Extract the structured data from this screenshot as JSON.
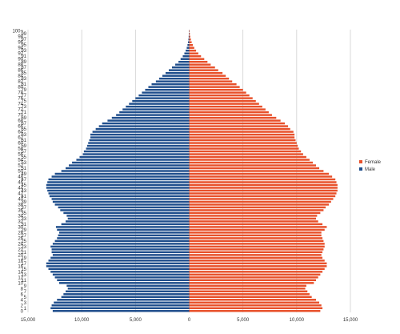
{
  "chart_data": {
    "type": "bar",
    "orientation": "horizontal",
    "layout": "population-pyramid",
    "categories": [
      "0",
      "1",
      "2",
      "3",
      "4",
      "5",
      "6",
      "7",
      "8",
      "9",
      "10",
      "11",
      "12",
      "13",
      "14",
      "15",
      "16",
      "17",
      "18",
      "19",
      "20",
      "21",
      "22",
      "23",
      "24",
      "25",
      "26",
      "27",
      "28",
      "29",
      "30",
      "31",
      "32",
      "33",
      "34",
      "35",
      "36",
      "37",
      "38",
      "39",
      "40",
      "41",
      "42",
      "43",
      "44",
      "45",
      "46",
      "47",
      "48",
      "49",
      "50",
      "51",
      "52",
      "53",
      "54",
      "55",
      "56",
      "57",
      "58",
      "59",
      "60",
      "61",
      "62",
      "63",
      "64",
      "65",
      "66",
      "67",
      "68",
      "69",
      "70",
      "71",
      "72",
      "73",
      "74",
      "75",
      "76",
      "77",
      "78",
      "79",
      "80",
      "81",
      "82",
      "83",
      "84",
      "85",
      "86",
      "87",
      "88",
      "89",
      "90",
      "91",
      "92",
      "93",
      "94",
      "95",
      "96",
      "97",
      "98",
      "99",
      "100+"
    ],
    "series": [
      {
        "name": "Male",
        "color": "#1f4e8c",
        "side": "left",
        "values": [
          12700,
          12900,
          12800,
          12600,
          12300,
          11900,
          11700,
          11500,
          11300,
          11400,
          12100,
          12300,
          12500,
          12700,
          12900,
          13100,
          13300,
          13300,
          13100,
          12900,
          12700,
          12800,
          12800,
          12900,
          12700,
          12500,
          12300,
          12200,
          12100,
          12300,
          12400,
          11900,
          11500,
          11300,
          11400,
          11700,
          12000,
          12200,
          12500,
          12700,
          12800,
          13000,
          13100,
          13200,
          13300,
          13300,
          13200,
          13100,
          12800,
          12500,
          11900,
          11500,
          11200,
          10900,
          10500,
          10200,
          9900,
          9800,
          9600,
          9500,
          9400,
          9300,
          9200,
          9200,
          9000,
          8700,
          8400,
          8100,
          7600,
          7200,
          6800,
          6500,
          6200,
          5900,
          5600,
          5300,
          5000,
          4700,
          4400,
          4100,
          3800,
          3500,
          3100,
          2800,
          2500,
          2200,
          1900,
          1600,
          1300,
          1000,
          800,
          600,
          450,
          330,
          230,
          160,
          110,
          75,
          50,
          30,
          20
        ]
      },
      {
        "name": "Female",
        "color": "#e8502a",
        "side": "right",
        "values": [
          12200,
          12400,
          12300,
          12100,
          11800,
          11400,
          11200,
          11000,
          10800,
          10900,
          11600,
          11800,
          12000,
          12200,
          12400,
          12600,
          12800,
          12800,
          12600,
          12400,
          12300,
          12400,
          12500,
          12600,
          12600,
          12500,
          12400,
          12300,
          12300,
          12600,
          12800,
          12400,
          12000,
          11800,
          11900,
          12200,
          12500,
          12700,
          13000,
          13200,
          13400,
          13600,
          13700,
          13800,
          13800,
          13800,
          13700,
          13600,
          13300,
          13000,
          12500,
          12100,
          11800,
          11500,
          11200,
          10900,
          10600,
          10400,
          10200,
          10100,
          10000,
          9900,
          9800,
          9800,
          9700,
          9400,
          9200,
          8900,
          8500,
          8100,
          7700,
          7400,
          7100,
          6800,
          6500,
          6200,
          5900,
          5600,
          5300,
          5000,
          4700,
          4400,
          4000,
          3700,
          3400,
          3100,
          2700,
          2400,
          2000,
          1700,
          1400,
          1100,
          850,
          640,
          470,
          340,
          230,
          160,
          100,
          60,
          35
        ]
      }
    ],
    "y_tick_labels": [
      "0",
      "1",
      "2",
      "3",
      "4",
      "5",
      "6",
      "7",
      "8",
      "9",
      "10",
      "11",
      "12",
      "13",
      "14",
      "15",
      "16",
      "17",
      "18",
      "19",
      "20",
      "21",
      "22",
      "23",
      "24",
      "25",
      "26",
      "27",
      "28",
      "29",
      "30",
      "31",
      "32",
      "33",
      "34",
      "35",
      "36",
      "37",
      "38",
      "39",
      "40",
      "41",
      "42",
      "43",
      "44",
      "45",
      "46",
      "47",
      "48",
      "49",
      "50",
      "51",
      "52",
      "53",
      "54",
      "55",
      "56",
      "57",
      "58",
      "59",
      "60",
      "61",
      "62",
      "63",
      "64",
      "65",
      "66",
      "67",
      "68",
      "69",
      "70",
      "71",
      "72",
      "73",
      "74",
      "75",
      "76",
      "77",
      "78",
      "79",
      "80",
      "81",
      "82",
      "83",
      "84",
      "85",
      "86",
      "87",
      "88",
      "89",
      "90",
      "91",
      "92",
      "93",
      "94",
      "95",
      "96",
      "97",
      "98",
      "99",
      "100+"
    ],
    "x_ticks": [
      -15000,
      -10000,
      -5000,
      0,
      5000,
      10000,
      15000
    ],
    "x_tick_labels": [
      "15,000",
      "10,000",
      "5,000",
      "0",
      "5,000",
      "10,000",
      "15,000"
    ],
    "xlim": [
      -15000,
      15000
    ],
    "title": "",
    "xlabel": "",
    "ylabel": "",
    "grid": true,
    "legend": {
      "position": "right",
      "entries": [
        "Female",
        "Male"
      ]
    }
  }
}
